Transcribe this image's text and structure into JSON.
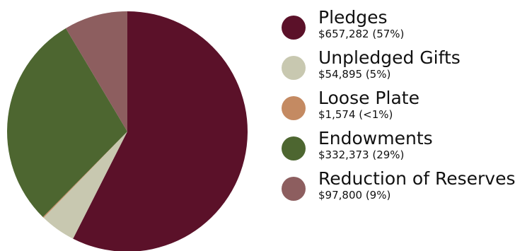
{
  "chart_data": {
    "type": "pie",
    "slices": [
      {
        "label": "Pledges",
        "amount": "$657,282",
        "percent_label": "(57%)",
        "value": 657282,
        "color": "#5b1129"
      },
      {
        "label": "Unpledged Gifts",
        "amount": "$54,895",
        "percent_label": "(5%)",
        "value": 54895,
        "color": "#c8c8b0"
      },
      {
        "label": "Loose Plate",
        "amount": "$1,574",
        "percent_label": "(<1%)",
        "value": 1574,
        "color": "#c48a62"
      },
      {
        "label": "Endowments",
        "amount": "$332,373",
        "percent_label": "(29%)",
        "value": 332373,
        "color": "#4d6630"
      },
      {
        "label": "Reduction of Reserves",
        "amount": "$97,800",
        "percent_label": "(9%)",
        "value": 97800,
        "color": "#8d5e5f"
      }
    ],
    "start_angle": "12 o'clock",
    "direction": "clockwise",
    "legend_position": "right"
  }
}
